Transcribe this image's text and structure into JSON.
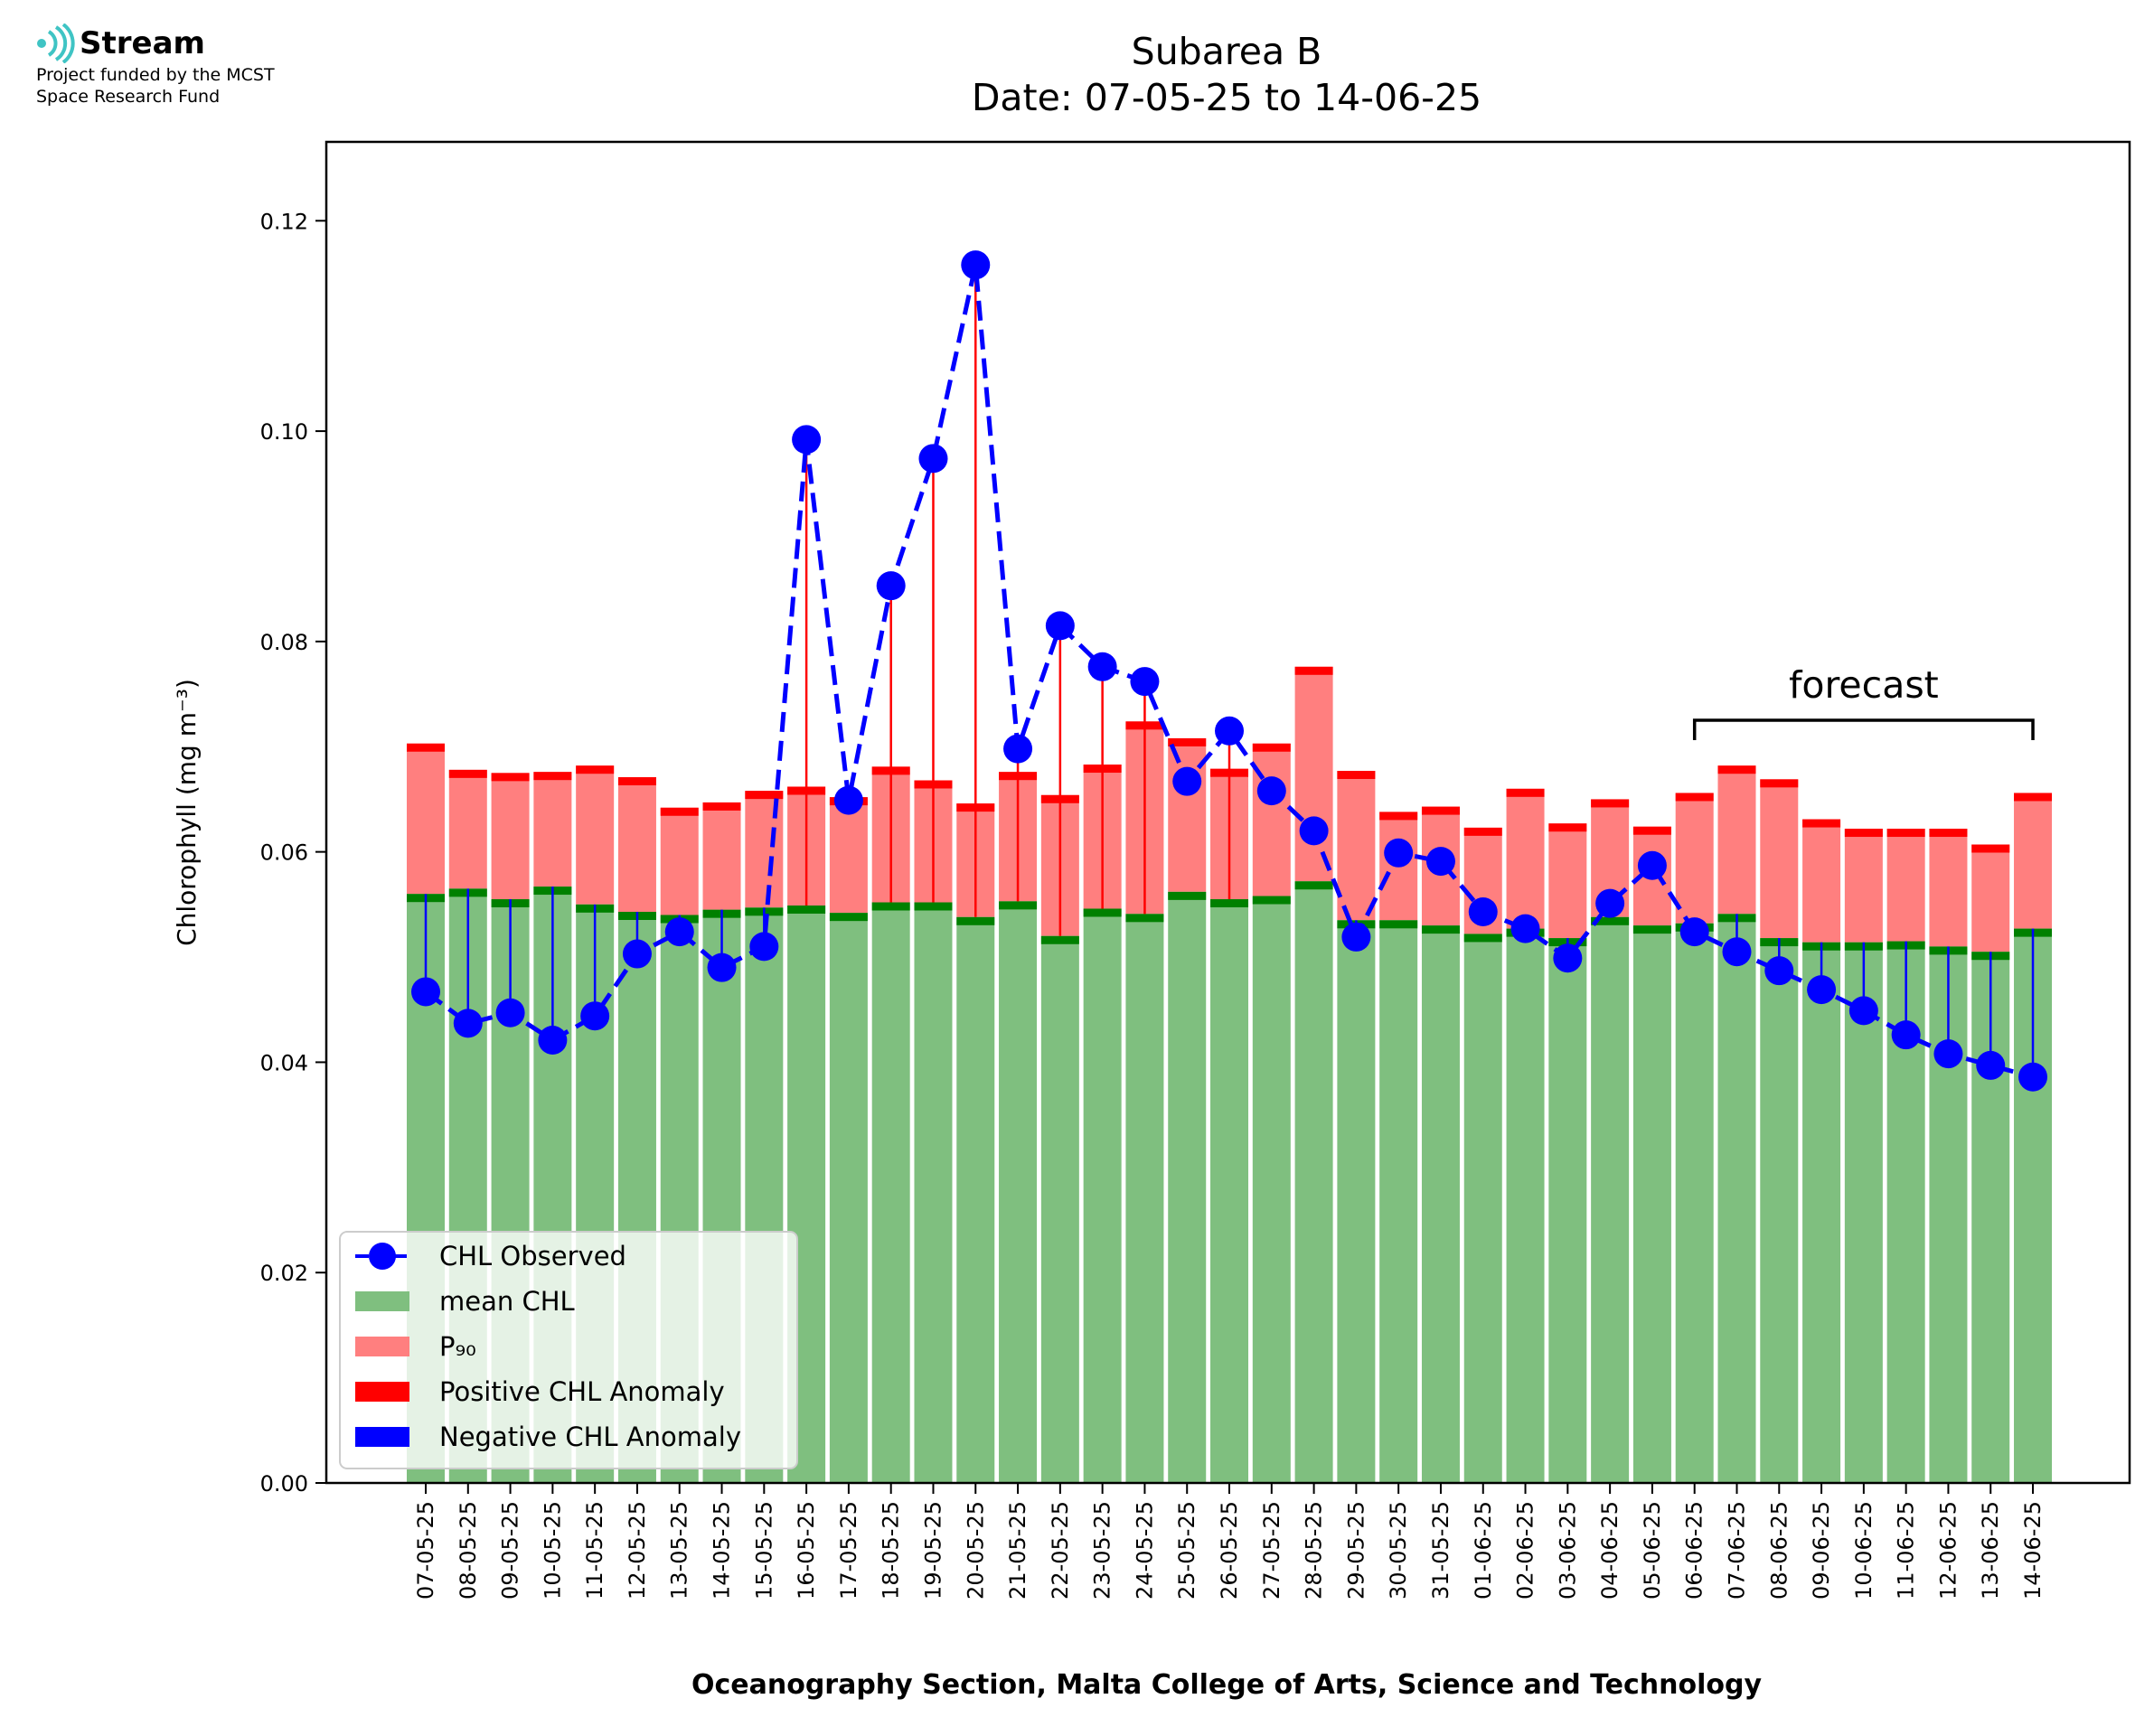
{
  "logo": {
    "name": "Stream",
    "line1": "Project funded by the MCST",
    "line2": "Space Research Fund"
  },
  "chart_data": {
    "type": "bar",
    "title": "Subarea B",
    "subtitle": "Date: 07-05-25 to 14-06-25",
    "ylabel": "Chlorophyll (mg m⁻³)",
    "xlabel": "Oceanography Section, Malta College of Arts, Science and Technology",
    "ylim": [
      0,
      0.1275
    ],
    "yticks": [
      "0.00",
      "0.02",
      "0.04",
      "0.06",
      "0.08",
      "0.10",
      "0.12"
    ],
    "ytick_values": [
      0,
      0.02,
      0.04,
      0.06,
      0.08,
      0.1,
      0.12
    ],
    "grid": false,
    "legend_position": "lower left",
    "annotation": "forecast",
    "forecast_range": [
      "06-06-25",
      "14-06-25"
    ],
    "colors": {
      "mean": "#7fbf7f",
      "mean_cap": "#008000",
      "p90": "#ff7f7f",
      "p90_cap": "#ff0000",
      "observed": "#0000ff",
      "positive_anomaly": "#ff0000",
      "negative_anomaly": "#0000ff"
    },
    "categories": [
      "07-05-25",
      "08-05-25",
      "09-05-25",
      "10-05-25",
      "11-05-25",
      "12-05-25",
      "13-05-25",
      "14-05-25",
      "15-05-25",
      "16-05-25",
      "17-05-25",
      "18-05-25",
      "19-05-25",
      "20-05-25",
      "21-05-25",
      "22-05-25",
      "23-05-25",
      "24-05-25",
      "25-05-25",
      "26-05-25",
      "27-05-25",
      "28-05-25",
      "29-05-25",
      "30-05-25",
      "31-05-25",
      "01-06-25",
      "02-06-25",
      "03-06-25",
      "04-06-25",
      "05-06-25",
      "06-06-25",
      "07-06-25",
      "08-06-25",
      "09-06-25",
      "10-06-25",
      "11-06-25",
      "12-06-25",
      "13-06-25",
      "14-06-25"
    ],
    "series": [
      {
        "name": "CHL Observed",
        "type": "line",
        "values": [
          0.0467,
          0.0437,
          0.0447,
          0.0421,
          0.0444,
          0.0503,
          0.0524,
          0.049,
          0.051,
          0.0992,
          0.0649,
          0.0853,
          0.0974,
          0.1158,
          0.0698,
          0.0815,
          0.0776,
          0.0762,
          0.0667,
          0.0715,
          0.0658,
          0.062,
          0.0519,
          0.0599,
          0.0591,
          0.0543,
          0.0527,
          0.0499,
          0.0551,
          0.0587,
          0.0524,
          0.0505,
          0.0487,
          0.0469,
          0.0449,
          0.0426,
          0.0408,
          0.0397,
          0.0386
        ]
      },
      {
        "name": "mean CHL",
        "type": "bar",
        "values": [
          0.056,
          0.0565,
          0.0555,
          0.0567,
          0.055,
          0.0543,
          0.054,
          0.0545,
          0.0547,
          0.0549,
          0.0542,
          0.0552,
          0.0552,
          0.0538,
          0.0553,
          0.052,
          0.0546,
          0.0541,
          0.0562,
          0.0555,
          0.0558,
          0.0572,
          0.0535,
          0.0535,
          0.053,
          0.0522,
          0.0527,
          0.0518,
          0.0538,
          0.053,
          0.0532,
          0.0541,
          0.0518,
          0.0514,
          0.0514,
          0.0515,
          0.051,
          0.0505,
          0.0527
        ]
      },
      {
        "name": "P₉₀",
        "type": "bar",
        "values": [
          0.0703,
          0.0678,
          0.0675,
          0.0676,
          0.0682,
          0.0671,
          0.0642,
          0.0647,
          0.0658,
          0.0662,
          0.0652,
          0.0681,
          0.0668,
          0.0646,
          0.0676,
          0.0654,
          0.0683,
          0.0724,
          0.0708,
          0.0679,
          0.0703,
          0.0776,
          0.0677,
          0.0638,
          0.0643,
          0.0623,
          0.066,
          0.0627,
          0.065,
          0.0624,
          0.0656,
          0.0682,
          0.0669,
          0.0631,
          0.0622,
          0.0622,
          0.0622,
          0.0607,
          0.0656
        ]
      },
      {
        "name": "Positive CHL Anomaly",
        "type": "bar"
      },
      {
        "name": "Negative CHL Anomaly",
        "type": "bar"
      }
    ]
  }
}
